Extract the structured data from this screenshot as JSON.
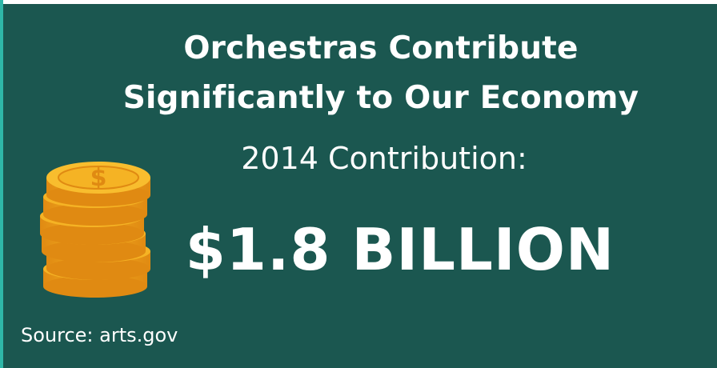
{
  "title": {
    "line1": "Orchestras Contribute",
    "line2": "Significantly to Our Economy"
  },
  "contribution_label": "2014 Contribution:",
  "contribution_amount": "$1.8 BILLION",
  "source": "Source: arts.gov",
  "coins_icon": "coin-stack-icon",
  "colors": {
    "background": "#1b5750",
    "text": "#ffffff",
    "coin_gold": "#f5b324",
    "coin_dark": "#e08a12",
    "accent_edge": "#2fb7a8"
  }
}
